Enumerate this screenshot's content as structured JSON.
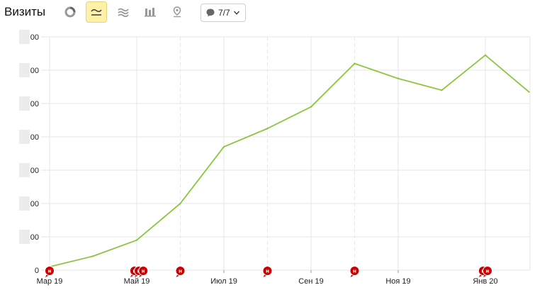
{
  "header": {
    "title": "Визиты",
    "notes_label": "7/7",
    "tools": [
      {
        "name": "pie-chart-icon",
        "active": false
      },
      {
        "name": "line-chart-icon",
        "active": true
      },
      {
        "name": "area-chart-icon",
        "active": false
      },
      {
        "name": "bar-chart-icon",
        "active": false
      },
      {
        "name": "map-pin-icon",
        "active": false
      }
    ]
  },
  "colors": {
    "series": "#8cc63f",
    "grid": "#e6e6e6",
    "note_marker": "#cc0000",
    "active_tool": "#fff1a8"
  },
  "chart_data": {
    "type": "line",
    "title": "",
    "xlabel": "",
    "ylabel": "",
    "x_tick_labels": [
      "Мар 19",
      "Май 19",
      "Июл 19",
      "Сен 19",
      "Ноя 19",
      "Янв 20"
    ],
    "y_tick_labels": [
      "0",
      "00",
      "00",
      "00",
      "00",
      "00",
      "00",
      "00"
    ],
    "ylim": [
      0,
      7
    ],
    "x": [
      "Мар 19",
      "Апр 19",
      "Май 19",
      "Июн 19",
      "Июл 19",
      "Авг 19",
      "Сен 19",
      "Окт 19",
      "Ноя 19",
      "Дек 19",
      "Янв 20",
      "Фев 20"
    ],
    "series": [
      {
        "values": [
          0.1,
          0.42,
          0.9,
          2.0,
          3.7,
          4.25,
          4.9,
          6.2,
          5.75,
          5.4,
          6.45,
          5.35
        ]
      }
    ],
    "notes": [
      {
        "label": "н",
        "month_index": 0
      },
      {
        "label": "н",
        "month_index": 1.95
      },
      {
        "label": "н",
        "month_index": 2.05
      },
      {
        "label": "н",
        "month_index": 2.15
      },
      {
        "label": "н",
        "month_index": 3.0
      },
      {
        "label": "н",
        "month_index": 5.0
      },
      {
        "label": "н",
        "month_index": 7.0
      },
      {
        "label": "н",
        "month_index": 9.95
      },
      {
        "label": "н",
        "month_index": 10.05
      }
    ],
    "dashed_x": [
      3,
      5,
      7
    ],
    "grid": true
  }
}
